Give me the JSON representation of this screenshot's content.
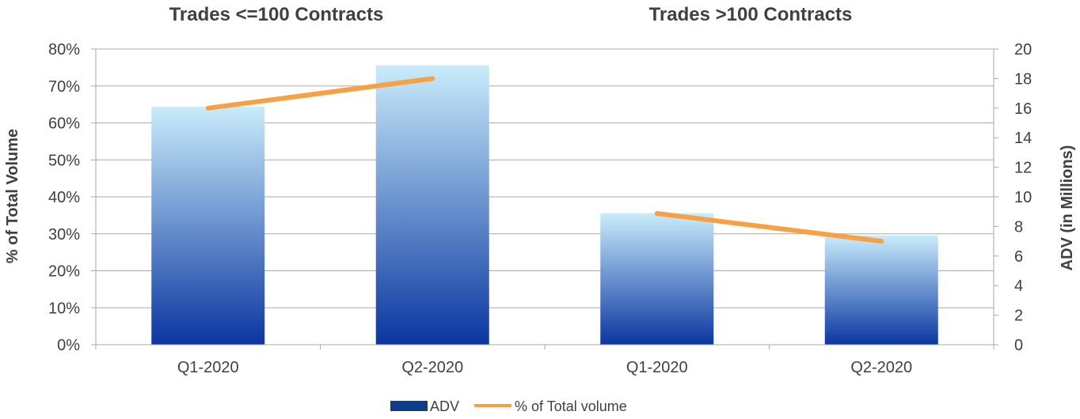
{
  "chart_data": {
    "type": "bar",
    "group_titles": [
      "Trades <=100 Contracts",
      "Trades >100 Contracts"
    ],
    "categories": [
      "Q1-2020",
      "Q2-2020",
      "Q1-2020",
      "Q2-2020"
    ],
    "series": [
      {
        "name": "ADV",
        "kind": "bar",
        "axis": "right",
        "values": [
          16.1,
          18.9,
          8.9,
          7.4
        ]
      },
      {
        "name": "% of Total volume",
        "kind": "line",
        "axis": "left",
        "values": [
          64,
          72,
          35.5,
          28
        ]
      }
    ],
    "ylabel_left": "% of Total Volume",
    "ylabel_right": "ADV (in Millions)",
    "ylim_left": [
      0,
      80
    ],
    "ylim_right": [
      0,
      20
    ],
    "yticks_left": [
      "0%",
      "10%",
      "20%",
      "30%",
      "40%",
      "50%",
      "60%",
      "70%",
      "80%"
    ],
    "yticks_right": [
      "0",
      "2",
      "4",
      "6",
      "8",
      "10",
      "12",
      "14",
      "16",
      "18",
      "20"
    ],
    "grid": true,
    "legend_position": "bottom",
    "colors": {
      "bar_top": "#c9ecfb",
      "bar_bottom": "#0a36a0",
      "legend_bar": "#0d3c8c",
      "line": "#f7a044",
      "grid": "#aaaaaa",
      "text": "#404040"
    }
  }
}
